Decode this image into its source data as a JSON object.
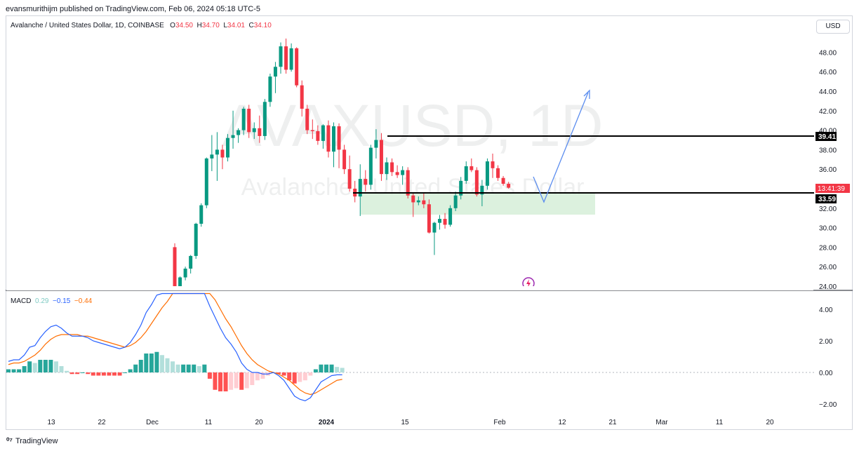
{
  "header": {
    "published_line": "evansmurithijm published on TradingView.com, Feb 06, 2024 05:18 UTC-5"
  },
  "legend": {
    "symbol_line": "Avalanche / United States Dollar, 1D, COINBASE",
    "o_key": "O",
    "o_val": "34.50",
    "h_key": "H",
    "h_val": "34.70",
    "l_key": "L",
    "l_val": "34.01",
    "c_key": "C",
    "c_val": "34.10"
  },
  "currency_button": "USD",
  "watermark": {
    "ticker": "AVAXUSD, 1D",
    "name": "Avalanche / United States Dollar"
  },
  "macd": {
    "label": "MACD",
    "hist": "0.29",
    "macd_line": "−0.15",
    "signal": "−0.44",
    "axis_labels": [
      "4.00",
      "2.00",
      "0.00",
      "−2.00"
    ]
  },
  "price_axis": [
    "48.00",
    "46.00",
    "44.00",
    "42.00",
    "40.00",
    "38.00",
    "36.00",
    "34.00",
    "32.00",
    "30.00",
    "28.00",
    "26.00",
    "24.00"
  ],
  "time_axis": [
    "13",
    "22",
    "Dec",
    "11",
    "20",
    "2024",
    "15",
    "Feb",
    "12",
    "21",
    "Mar",
    "11",
    "20"
  ],
  "markers": {
    "resistance": "39.41",
    "support": "33.59",
    "countdown": "13:41:39"
  },
  "footer": {
    "brand": "TradingView"
  },
  "colors": {
    "up": "#089981",
    "down": "#f23645",
    "macd_line": "#2962ff",
    "signal_line": "#ff6d00",
    "hist_up_strong": "#26a69a",
    "hist_up_weak": "#b2dfdb",
    "hist_down_strong": "#ff5252",
    "hist_down_weak": "#ffcdd2",
    "zone": "#d6efd8",
    "projection": "#5b8def"
  },
  "chart_data": {
    "type": "candlestick",
    "price_range": [
      24,
      49.5
    ],
    "candles": [
      [
        28.0,
        28.4,
        23.8,
        23.9
      ],
      [
        23.9,
        25.0,
        23.5,
        24.9
      ],
      [
        24.9,
        26.0,
        24.6,
        25.8
      ],
      [
        25.8,
        27.2,
        25.3,
        27.1
      ],
      [
        27.1,
        30.5,
        26.8,
        30.4
      ],
      [
        30.4,
        32.5,
        30.1,
        32.3
      ],
      [
        32.3,
        37.2,
        32.0,
        37.1
      ],
      [
        37.1,
        39.5,
        35.8,
        37.5
      ],
      [
        37.5,
        39.8,
        34.8,
        38.0
      ],
      [
        38.0,
        38.5,
        36.0,
        37.2
      ],
      [
        37.2,
        39.6,
        36.8,
        39.2
      ],
      [
        39.2,
        42.0,
        38.1,
        39.5
      ],
      [
        39.5,
        40.2,
        38.7,
        40.0
      ],
      [
        40.0,
        42.4,
        39.5,
        42.2
      ],
      [
        42.2,
        42.6,
        39.2,
        39.8
      ],
      [
        39.8,
        40.8,
        39.1,
        40.2
      ],
      [
        40.2,
        41.5,
        38.7,
        39.4
      ],
      [
        39.4,
        43.2,
        39.0,
        42.9
      ],
      [
        42.9,
        45.8,
        42.4,
        45.5
      ],
      [
        45.5,
        47.0,
        43.8,
        46.5
      ],
      [
        46.5,
        49.0,
        45.8,
        48.6
      ],
      [
        48.6,
        49.4,
        45.8,
        46.2
      ],
      [
        46.2,
        48.9,
        46.0,
        48.4
      ],
      [
        48.4,
        48.5,
        44.4,
        44.6
      ],
      [
        44.6,
        45.1,
        41.4,
        42.2
      ],
      [
        42.2,
        42.6,
        39.6,
        40.0
      ],
      [
        40.0,
        41.1,
        39.1,
        39.9
      ],
      [
        39.9,
        40.5,
        38.5,
        38.9
      ],
      [
        38.9,
        40.6,
        38.1,
        40.5
      ],
      [
        40.5,
        41.0,
        37.2,
        37.8
      ],
      [
        37.8,
        40.8,
        36.2,
        40.4
      ],
      [
        40.4,
        40.7,
        36.1,
        38.0
      ],
      [
        38.0,
        38.5,
        35.5,
        36.0
      ],
      [
        36.0,
        37.4,
        33.7,
        34.0
      ],
      [
        34.0,
        34.8,
        32.6,
        33.2
      ],
      [
        33.2,
        36.5,
        31.2,
        35.0
      ],
      [
        35.0,
        35.9,
        33.7,
        34.4
      ],
      [
        34.4,
        38.5,
        33.9,
        38.2
      ],
      [
        38.2,
        40.1,
        37.1,
        39.0
      ],
      [
        39.0,
        39.7,
        34.8,
        35.5
      ],
      [
        35.5,
        37.2,
        34.9,
        36.7
      ],
      [
        36.7,
        37.1,
        35.3,
        35.7
      ],
      [
        35.7,
        36.4,
        35.1,
        35.4
      ],
      [
        35.4,
        36.3,
        34.4,
        35.9
      ],
      [
        35.9,
        36.2,
        33.0,
        33.3
      ],
      [
        33.3,
        33.6,
        31.1,
        32.6
      ],
      [
        32.6,
        33.2,
        32.3,
        32.8
      ],
      [
        32.8,
        33.5,
        32.0,
        32.4
      ],
      [
        32.4,
        32.9,
        29.4,
        29.5
      ],
      [
        29.5,
        30.6,
        27.2,
        30.5
      ],
      [
        30.5,
        31.3,
        29.8,
        30.9
      ],
      [
        30.9,
        31.5,
        29.9,
        30.3
      ],
      [
        30.3,
        32.3,
        30.1,
        32.0
      ],
      [
        32.0,
        33.7,
        31.7,
        33.3
      ],
      [
        33.3,
        35.2,
        32.9,
        34.8
      ],
      [
        34.8,
        36.8,
        34.5,
        36.3
      ],
      [
        36.3,
        37.1,
        35.7,
        35.9
      ],
      [
        35.9,
        36.2,
        33.2,
        33.4
      ],
      [
        33.4,
        34.9,
        32.2,
        34.3
      ],
      [
        34.3,
        37.1,
        33.9,
        36.8
      ],
      [
        36.8,
        37.6,
        35.1,
        36.1
      ],
      [
        36.1,
        36.4,
        34.8,
        35.1
      ],
      [
        35.1,
        35.3,
        34.3,
        34.5
      ],
      [
        34.5,
        34.7,
        34.01,
        34.1
      ]
    ],
    "macd_range": [
      -2.7,
      5.0
    ],
    "macd_line": [
      0.7,
      0.8,
      0.8,
      1.1,
      1.6,
      1.7,
      2.2,
      2.6,
      2.9,
      3.0,
      2.8,
      2.5,
      2.3,
      2.3,
      2.3,
      2.2,
      2.0,
      1.9,
      1.8,
      1.7,
      1.6,
      1.5,
      1.6,
      1.9,
      2.4,
      3.0,
      3.8,
      4.3,
      4.9,
      5.0,
      5.0,
      5.0,
      5.0,
      5.0,
      5.0,
      5.0,
      5.0,
      5.0,
      4.2,
      3.5,
      2.8,
      2.2,
      1.8,
      1.3,
      0.6,
      0.2,
      0.0,
      0.0,
      -0.1,
      -0.1,
      0.0,
      -0.2,
      -0.5,
      -1.0,
      -1.5,
      -1.7,
      -1.8,
      -1.6,
      -1.1,
      -0.6,
      -0.4,
      -0.2,
      -0.15,
      -0.15
    ],
    "signal_line": [
      0.5,
      0.6,
      0.6,
      0.7,
      0.9,
      1.1,
      1.4,
      1.8,
      2.1,
      2.3,
      2.4,
      2.4,
      2.4,
      2.4,
      2.3,
      2.3,
      2.2,
      2.1,
      2.0,
      1.9,
      1.8,
      1.7,
      1.6,
      1.7,
      1.9,
      2.2,
      2.6,
      3.1,
      3.6,
      4.1,
      4.5,
      5.0,
      5.0,
      5.0,
      5.0,
      5.0,
      5.0,
      5.0,
      5.0,
      4.6,
      4.0,
      3.4,
      2.9,
      2.3,
      1.7,
      1.2,
      0.8,
      0.5,
      0.3,
      0.1,
      0.0,
      -0.1,
      -0.3,
      -0.5,
      -0.8,
      -1.1,
      -1.3,
      -1.4,
      -1.3,
      -1.1,
      -0.9,
      -0.7,
      -0.5,
      -0.44
    ],
    "histogram": [
      0.2,
      0.2,
      0.2,
      0.4,
      0.7,
      0.6,
      0.8,
      0.8,
      0.8,
      0.7,
      0.4,
      0.1,
      -0.1,
      -0.1,
      0.0,
      -0.1,
      -0.2,
      -0.2,
      -0.2,
      -0.2,
      -0.2,
      -0.2,
      0.0,
      0.2,
      0.5,
      0.8,
      1.2,
      1.2,
      1.3,
      1.1,
      0.9,
      0.7,
      0.5,
      0.5,
      0.5,
      0.5,
      0.4,
      0.5,
      -0.4,
      -1.1,
      -1.2,
      -1.2,
      -1.1,
      -1.0,
      -1.1,
      -1.0,
      -0.8,
      -0.5,
      -0.4,
      -0.2,
      0.0,
      -0.1,
      -0.2,
      -0.5,
      -0.7,
      -0.6,
      -0.5,
      -0.2,
      0.2,
      0.5,
      0.5,
      0.5,
      0.35,
      0.29
    ]
  }
}
